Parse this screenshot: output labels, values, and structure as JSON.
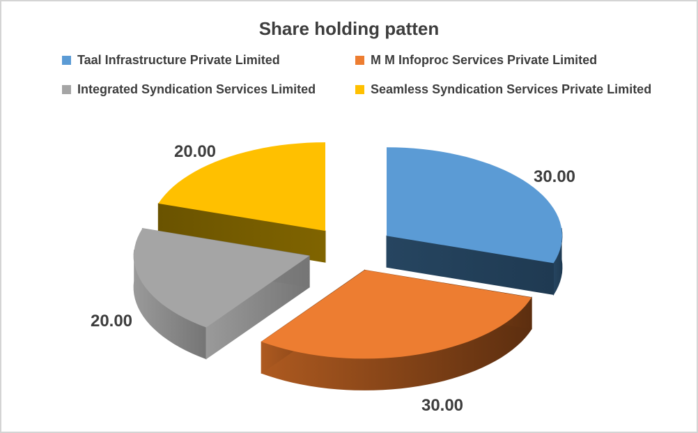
{
  "page": {
    "background": "#FFFFFF",
    "border_color": "#D4D4D4",
    "text_color": "#3D3D3D"
  },
  "chart_data": {
    "type": "pie",
    "three_d": true,
    "exploded": true,
    "title": "Share holding patten",
    "title_color": "#3D3D3D",
    "data_label_color": "#3D3D3D",
    "legend_position": "top",
    "start_angle_deg": 0,
    "direction": "clockwise",
    "categories": [
      "Taal Infrastructure Private Limited",
      "M M Infoproc Services Private Limited",
      "Integrated Syndication Services Limited",
      "Seamless Syndication Services Private Limited"
    ],
    "values": [
      30.0,
      30.0,
      20.0,
      20.0
    ],
    "data_labels": [
      "30.00",
      "30.00",
      "20.00",
      "20.00"
    ],
    "series": [
      {
        "name": "Taal Infrastructure Private Limited",
        "value": 30.0,
        "label": "30.00",
        "color": "#5B9BD5",
        "side_color_start": "#264560",
        "side_color_end": "#1F3A52"
      },
      {
        "name": "M M Infoproc Services Private Limited",
        "value": 30.0,
        "label": "30.00",
        "color": "#ED7D31",
        "side_color_start": "#AE5A20",
        "side_color_end": "#5C2E0F"
      },
      {
        "name": "Integrated Syndication Services Limited",
        "value": 20.0,
        "label": "20.00",
        "color": "#A5A5A5",
        "side_color_start": "#9A9A9A",
        "side_color_end": "#757575"
      },
      {
        "name": "Seamless Syndication Services Private Limited",
        "value": 20.0,
        "label": "20.00",
        "color": "#FFC000",
        "side_color_start": "#6A5300",
        "side_color_end": "#806400"
      }
    ]
  }
}
